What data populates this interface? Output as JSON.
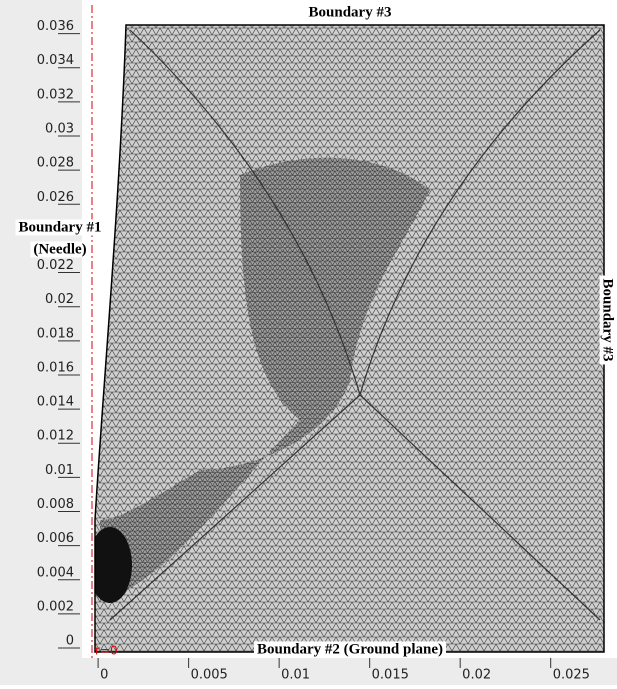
{
  "chart_data": {
    "type": "mesh",
    "xlim": [
      -0.001,
      0.028
    ],
    "ylim": [
      -0.0007,
      0.0375
    ],
    "xticks": [
      0,
      0.005,
      0.01,
      0.015,
      0.02,
      0.025
    ],
    "yticks": [
      0,
      0.002,
      0.004,
      0.006,
      0.008,
      0.01,
      0.012,
      0.014,
      0.016,
      0.018,
      0.02,
      0.022,
      0.026,
      0.028,
      0.03,
      0.032,
      0.034,
      0.036
    ],
    "axis_origin_label": "r=0",
    "annotations": {
      "top": "Boundary #3",
      "left": [
        "Boundary #1",
        "(Needle)"
      ],
      "bottom": "Boundary #2 (Ground plane)",
      "right": "Boundary #3"
    }
  }
}
